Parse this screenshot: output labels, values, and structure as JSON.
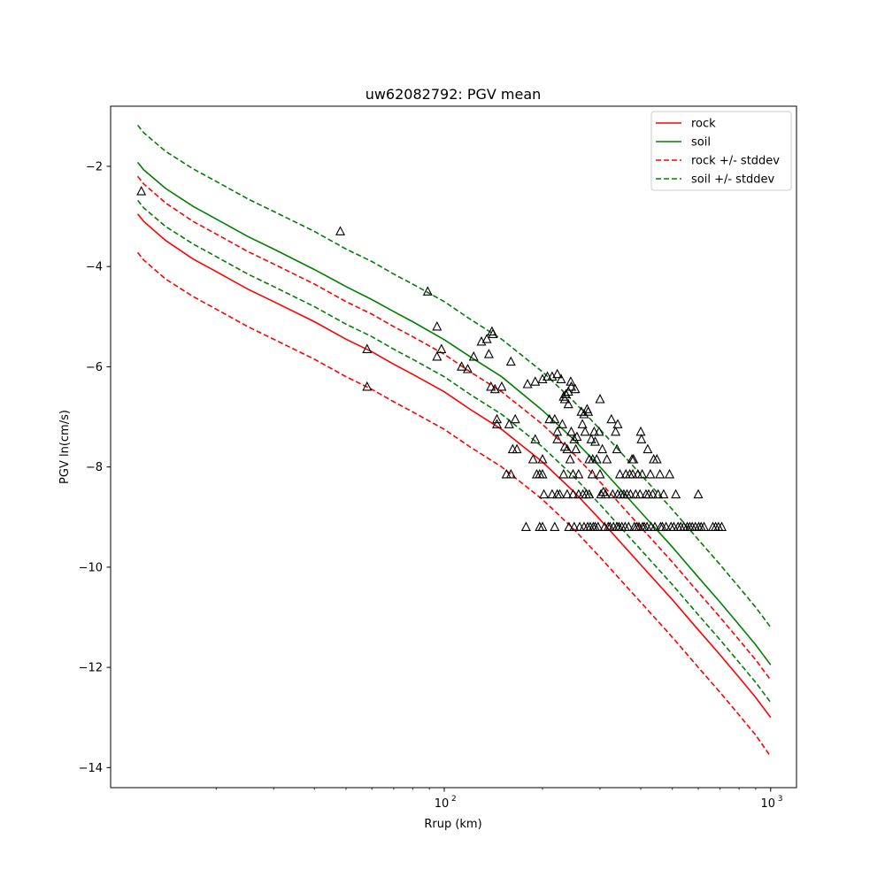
{
  "chart_data": {
    "type": "line",
    "title": "uw62082792: PGV mean",
    "xlabel": "Rrup (km)",
    "ylabel": "PGV ln(cm/s)",
    "xscale": "log",
    "xlim": [
      9.5,
      1200
    ],
    "ylim": [
      -14.4,
      -0.8
    ],
    "x_major_ticks": [
      {
        "value": 100,
        "base": "10",
        "exp": "2"
      },
      {
        "value": 1000,
        "base": "10",
        "exp": "3"
      }
    ],
    "x_minor_ticks": [
      20,
      30,
      40,
      50,
      60,
      70,
      80,
      90,
      200,
      300,
      400,
      500,
      600,
      700,
      800,
      900
    ],
    "y_ticks": [
      {
        "value": -2,
        "label": "−2"
      },
      {
        "value": -4,
        "label": "−4"
      },
      {
        "value": -6,
        "label": "−6"
      },
      {
        "value": -8,
        "label": "−8"
      },
      {
        "value": -10,
        "label": "−10"
      },
      {
        "value": -12,
        "label": "−12"
      },
      {
        "value": -14,
        "label": "−14"
      }
    ],
    "grid": false,
    "legend_position": "top-right",
    "x": [
      11.5,
      12,
      14,
      17,
      20,
      25,
      30,
      40,
      50,
      60,
      70,
      80,
      100,
      120,
      150,
      200,
      250,
      300,
      400,
      500,
      600,
      700,
      800,
      900,
      1000
    ],
    "series": [
      {
        "name": "rock",
        "color": "#ff0000",
        "dash": false,
        "values": [
          -2.95,
          -3.1,
          -3.48,
          -3.85,
          -4.1,
          -4.45,
          -4.7,
          -5.1,
          -5.45,
          -5.7,
          -5.95,
          -6.15,
          -6.5,
          -6.85,
          -7.25,
          -7.9,
          -8.5,
          -9.05,
          -9.95,
          -10.65,
          -11.25,
          -11.75,
          -12.2,
          -12.6,
          -13.0
        ]
      },
      {
        "name": "soil",
        "color": "#008000",
        "dash": false,
        "values": [
          -1.92,
          -2.07,
          -2.44,
          -2.8,
          -3.05,
          -3.4,
          -3.65,
          -4.06,
          -4.4,
          -4.66,
          -4.9,
          -5.1,
          -5.46,
          -5.8,
          -6.2,
          -6.87,
          -7.46,
          -8.0,
          -8.9,
          -9.6,
          -10.2,
          -10.7,
          -11.15,
          -11.55,
          -11.95
        ]
      },
      {
        "name": "rock +/- stddev",
        "color": "#ff0000",
        "dash": true,
        "values": [
          -2.2,
          -2.35,
          -2.73,
          -3.1,
          -3.35,
          -3.7,
          -3.95,
          -4.35,
          -4.7,
          -4.95,
          -5.2,
          -5.4,
          -5.75,
          -6.1,
          -6.5,
          -7.15,
          -7.75,
          -8.3,
          -9.2,
          -9.9,
          -10.5,
          -11.0,
          -11.45,
          -11.85,
          -12.25
        ]
      },
      {
        "color": "#ff0000",
        "dash": true,
        "values": [
          -3.72,
          -3.87,
          -4.25,
          -4.6,
          -4.85,
          -5.2,
          -5.45,
          -5.85,
          -6.2,
          -6.45,
          -6.7,
          -6.9,
          -7.25,
          -7.6,
          -8.0,
          -8.65,
          -9.25,
          -9.8,
          -10.7,
          -11.4,
          -12.0,
          -12.5,
          -12.95,
          -13.35,
          -13.78
        ]
      },
      {
        "name": "soil +/- stddev",
        "color": "#008000",
        "dash": true,
        "values": [
          -1.18,
          -1.33,
          -1.7,
          -2.05,
          -2.3,
          -2.65,
          -2.9,
          -3.3,
          -3.65,
          -3.9,
          -4.15,
          -4.35,
          -4.7,
          -5.05,
          -5.45,
          -6.1,
          -6.7,
          -7.25,
          -8.15,
          -8.85,
          -9.45,
          -9.95,
          -10.4,
          -10.8,
          -11.2
        ]
      },
      {
        "color": "#008000",
        "dash": true,
        "values": [
          -2.68,
          -2.83,
          -3.2,
          -3.55,
          -3.8,
          -4.15,
          -4.4,
          -4.8,
          -5.15,
          -5.4,
          -5.65,
          -5.85,
          -6.2,
          -6.55,
          -6.95,
          -7.6,
          -8.2,
          -8.75,
          -9.65,
          -10.35,
          -10.95,
          -11.45,
          -11.9,
          -12.3,
          -12.7
        ]
      }
    ],
    "legend": [
      {
        "label": "rock",
        "color": "#ff0000",
        "dash": false
      },
      {
        "label": "soil",
        "color": "#008000",
        "dash": false
      },
      {
        "label": "rock +/- stddev",
        "color": "#ff0000",
        "dash": true
      },
      {
        "label": "soil +/- stddev",
        "color": "#008000",
        "dash": true
      }
    ],
    "observations": {
      "marker": "triangle",
      "color": "#000000",
      "points": [
        [
          11.8,
          -2.5
        ],
        [
          48,
          -3.3
        ],
        [
          58,
          -5.65
        ],
        [
          58,
          -6.4
        ],
        [
          89,
          -4.5
        ],
        [
          95,
          -5.2
        ],
        [
          95,
          -5.8
        ],
        [
          98,
          -5.65
        ],
        [
          113,
          -6.0
        ],
        [
          118,
          -6.05
        ],
        [
          123,
          -5.8
        ],
        [
          130,
          -5.5
        ],
        [
          135,
          -5.45
        ],
        [
          137,
          -5.75
        ],
        [
          140,
          -5.3
        ],
        [
          141,
          -5.35
        ],
        [
          139,
          -6.4
        ],
        [
          143,
          -6.45
        ],
        [
          145,
          -7.05
        ],
        [
          145,
          -7.15
        ],
        [
          150,
          -6.4
        ],
        [
          155,
          -8.15
        ],
        [
          158,
          -7.15
        ],
        [
          160,
          -8.15
        ],
        [
          160,
          -5.9
        ],
        [
          162,
          -7.65
        ],
        [
          165,
          -7.05
        ],
        [
          167,
          -7.65
        ],
        [
          178,
          -9.2
        ],
        [
          180,
          -6.35
        ],
        [
          187,
          -7.85
        ],
        [
          190,
          -6.3
        ],
        [
          190,
          -7.45
        ],
        [
          192,
          -8.15
        ],
        [
          196,
          -8.15
        ],
        [
          196,
          -9.2
        ],
        [
          200,
          -6.25
        ],
        [
          200,
          -7.85
        ],
        [
          200,
          -8.15
        ],
        [
          202,
          -8.55
        ],
        [
          200,
          -9.2
        ],
        [
          207,
          -6.2
        ],
        [
          210,
          -7.05
        ],
        [
          214,
          -6.2
        ],
        [
          214,
          -8.55
        ],
        [
          218,
          -7.05
        ],
        [
          218,
          -9.2
        ],
        [
          222,
          -6.15
        ],
        [
          222,
          -8.55
        ],
        [
          222,
          -7.45
        ],
        [
          222,
          -7.3
        ],
        [
          226,
          -8.55
        ],
        [
          228,
          -6.25
        ],
        [
          230,
          -7.15
        ],
        [
          232,
          -6.6
        ],
        [
          232,
          -8.15
        ],
        [
          234,
          -6.65
        ],
        [
          234,
          -7.6
        ],
        [
          236,
          -6.55
        ],
        [
          238,
          -7.65
        ],
        [
          238,
          -8.55
        ],
        [
          240,
          -6.75
        ],
        [
          240,
          -6.5
        ],
        [
          241,
          -9.2
        ],
        [
          243,
          -7.85
        ],
        [
          244,
          -6.3
        ],
        [
          245,
          -6.4
        ],
        [
          245,
          -7.3
        ],
        [
          248,
          -8.15
        ],
        [
          248,
          -8.55
        ],
        [
          250,
          -7.45
        ],
        [
          250,
          -9.2
        ],
        [
          252,
          -6.45
        ],
        [
          253,
          -7.65
        ],
        [
          255,
          -7.4
        ],
        [
          258,
          -8.15
        ],
        [
          258,
          -8.55
        ],
        [
          260,
          -9.2
        ],
        [
          263,
          -6.9
        ],
        [
          265,
          -7.15
        ],
        [
          266,
          -8.55
        ],
        [
          268,
          -9.2
        ],
        [
          268,
          -6.95
        ],
        [
          270,
          -7.3
        ],
        [
          272,
          -8.55
        ],
        [
          274,
          -6.85
        ],
        [
          275,
          -9.2
        ],
        [
          276,
          -6.9
        ],
        [
          278,
          -7.85
        ],
        [
          278,
          -8.55
        ],
        [
          280,
          -9.2
        ],
        [
          282,
          -7.45
        ],
        [
          284,
          -8.15
        ],
        [
          285,
          -7.85
        ],
        [
          286,
          -9.2
        ],
        [
          288,
          -7.3
        ],
        [
          290,
          -7.5
        ],
        [
          290,
          -9.2
        ],
        [
          293,
          -7.85
        ],
        [
          296,
          -9.2
        ],
        [
          298,
          -7.3
        ],
        [
          300,
          -6.65
        ],
        [
          300,
          -8.15
        ],
        [
          302,
          -8.55
        ],
        [
          305,
          -7.65
        ],
        [
          307,
          -8.5
        ],
        [
          310,
          -9.2
        ],
        [
          312,
          -8.55
        ],
        [
          315,
          -7.85
        ],
        [
          318,
          -9.2
        ],
        [
          322,
          -9.2
        ],
        [
          325,
          -7.05
        ],
        [
          328,
          -8.55
        ],
        [
          330,
          -9.2
        ],
        [
          335,
          -7.3
        ],
        [
          338,
          -7.65
        ],
        [
          338,
          -9.2
        ],
        [
          340,
          -8.55
        ],
        [
          340,
          -7.15
        ],
        [
          343,
          -9.2
        ],
        [
          345,
          -8.15
        ],
        [
          348,
          -8.55
        ],
        [
          350,
          -9.2
        ],
        [
          355,
          -8.55
        ],
        [
          358,
          -9.2
        ],
        [
          360,
          -8.15
        ],
        [
          363,
          -8.55
        ],
        [
          367,
          -9.2
        ],
        [
          370,
          -8.15
        ],
        [
          372,
          -8.55
        ],
        [
          376,
          -7.85
        ],
        [
          378,
          -8.15
        ],
        [
          380,
          -7.85
        ],
        [
          382,
          -9.2
        ],
        [
          386,
          -8.55
        ],
        [
          388,
          -9.2
        ],
        [
          392,
          -8.15
        ],
        [
          395,
          -9.2
        ],
        [
          398,
          -8.55
        ],
        [
          400,
          -7.3
        ],
        [
          402,
          -7.45
        ],
        [
          404,
          -8.15
        ],
        [
          405,
          -9.2
        ],
        [
          410,
          -9.2
        ],
        [
          415,
          -8.55
        ],
        [
          418,
          -9.2
        ],
        [
          420,
          -7.65
        ],
        [
          423,
          -8.55
        ],
        [
          428,
          -8.15
        ],
        [
          430,
          -9.2
        ],
        [
          435,
          -8.55
        ],
        [
          438,
          -7.85
        ],
        [
          442,
          -9.2
        ],
        [
          448,
          -7.85
        ],
        [
          452,
          -8.55
        ],
        [
          458,
          -8.15
        ],
        [
          460,
          -9.2
        ],
        [
          466,
          -9.2
        ],
        [
          470,
          -8.55
        ],
        [
          478,
          -9.2
        ],
        [
          490,
          -8.15
        ],
        [
          495,
          -9.2
        ],
        [
          505,
          -9.2
        ],
        [
          512,
          -8.55
        ],
        [
          520,
          -9.2
        ],
        [
          530,
          -9.2
        ],
        [
          542,
          -9.2
        ],
        [
          555,
          -9.2
        ],
        [
          565,
          -9.2
        ],
        [
          575,
          -9.2
        ],
        [
          588,
          -9.2
        ],
        [
          600,
          -8.55
        ],
        [
          602,
          -9.2
        ],
        [
          612,
          -9.2
        ],
        [
          625,
          -9.2
        ],
        [
          665,
          -9.2
        ],
        [
          678,
          -9.2
        ],
        [
          692,
          -9.2
        ],
        [
          708,
          -9.2
        ]
      ]
    }
  }
}
